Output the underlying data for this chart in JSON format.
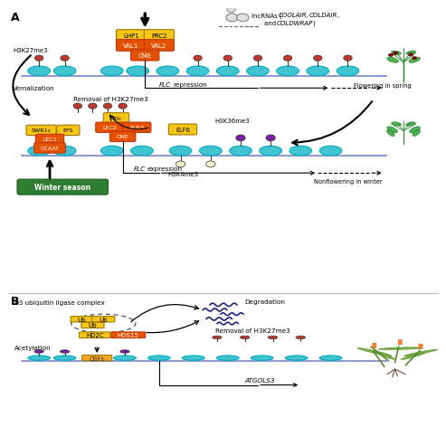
{
  "bg_color": "#ffffff",
  "nc": "#40c4d0",
  "nc2": "#00acc1",
  "dna_color": "#7986cb",
  "red": "#c0392b",
  "purple": "#7b1fa2",
  "cream": "#f5f0c8",
  "yellow": "#f5c518",
  "yellow2": "#f9a825",
  "orange": "#e65100",
  "green_bg": "#2e7d32",
  "navy": "#1a237e",
  "gray": "#888888",
  "panel_div": 0.335,
  "lncrna_text": "lncRNAs (COOLAIR, COLDAIR,\nand COLDWRAP)",
  "vernalization": "Vernalization",
  "flc_repression": "FLC repression",
  "flc_expression": "FLC expression",
  "flowering_spring": "Flowering in spring",
  "nonflowering_winter": "Nonflowering in winter",
  "h3k27me3": "H3K27me3",
  "h3k36me3": "H3K36me3",
  "h3k4me3": "H3K4me3",
  "removal_text": "Removal of H3K27me3",
  "winter_season": "Winter season",
  "e3_text": "E3 ubiquitin ligase complex",
  "degradation": "Degradation",
  "removal_b": "Removal of H3K27me3",
  "acetylation": "Acetylation",
  "atgols3": "ATGOLS3"
}
